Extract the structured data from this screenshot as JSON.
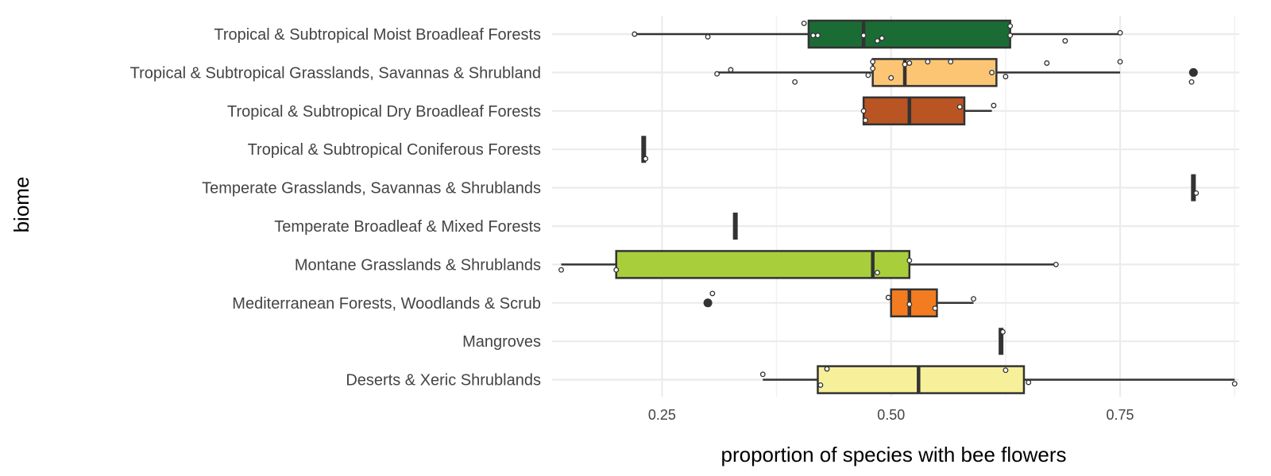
{
  "chart_data": {
    "type": "boxplot",
    "orientation": "horizontal",
    "xlabel": "proportion of species with bee flowers",
    "ylabel": "biome",
    "xlim": [
      0.13,
      0.88
    ],
    "x_ticks": [
      0.25,
      0.5,
      0.75
    ],
    "x_tick_labels": [
      "0.25",
      "0.50",
      "0.75"
    ],
    "grid": true,
    "legend": "none",
    "box_outline_color": "#333333",
    "categories": [
      "Tropical & Subtropical Moist Broadleaf Forests",
      "Tropical & Subtropical Grasslands, Savannas & Shrubland",
      "Tropical & Subtropical Dry Broadleaf Forests",
      "Tropical & Subtropical Coniferous Forests",
      "Temperate Grasslands, Savannas & Shrublands",
      "Temperate Broadleaf & Mixed Forests",
      "Montane Grasslands & Shrublands",
      "Mediterranean Forests, Woodlands & Scrub",
      "Mangroves",
      "Deserts & Xeric Shrublands"
    ],
    "series": [
      {
        "color": "#1b6b35",
        "whisker_low": 0.22,
        "q1": 0.41,
        "median": 0.47,
        "q3": 0.63,
        "whisker_high": 0.75,
        "outliers": [],
        "points": [
          [
            0.405,
            -0.4
          ],
          [
            0.22,
            0.0
          ],
          [
            0.3,
            0.1
          ],
          [
            0.415,
            0.05
          ],
          [
            0.42,
            0.05
          ],
          [
            0.47,
            0.05
          ],
          [
            0.49,
            0.15
          ],
          [
            0.485,
            0.25
          ],
          [
            0.63,
            -0.3
          ],
          [
            0.63,
            0.05
          ],
          [
            0.69,
            0.25
          ],
          [
            0.75,
            -0.05
          ]
        ]
      },
      {
        "color": "#fcc574",
        "whisker_low": 0.31,
        "q1": 0.48,
        "median": 0.515,
        "q3": 0.615,
        "whisker_high": 0.75,
        "outliers": [
          0.83
        ],
        "points": [
          [
            0.325,
            -0.1
          ],
          [
            0.31,
            0.05
          ],
          [
            0.395,
            0.35
          ],
          [
            0.48,
            -0.4
          ],
          [
            0.48,
            -0.15
          ],
          [
            0.475,
            0.1
          ],
          [
            0.5,
            0.2
          ],
          [
            0.515,
            -0.3
          ],
          [
            0.52,
            -0.35
          ],
          [
            0.54,
            -0.4
          ],
          [
            0.565,
            -0.4
          ],
          [
            0.61,
            0.0
          ],
          [
            0.625,
            0.15
          ],
          [
            0.67,
            -0.35
          ],
          [
            0.75,
            -0.4
          ],
          [
            0.828,
            0.35
          ]
        ]
      },
      {
        "color": "#b95423",
        "whisker_low": 0.47,
        "q1": 0.47,
        "median": 0.52,
        "q3": 0.58,
        "whisker_high": 0.61,
        "outliers": [],
        "points": [
          [
            0.47,
            0.0
          ],
          [
            0.472,
            0.35
          ],
          [
            0.575,
            -0.15
          ],
          [
            0.612,
            -0.2
          ]
        ]
      },
      {
        "color": "#d73027",
        "whisker_low": 0.23,
        "q1": 0.23,
        "median": 0.23,
        "q3": 0.23,
        "whisker_high": 0.23,
        "outliers": [],
        "points": [
          [
            0.232,
            0.35
          ]
        ]
      },
      {
        "color": "#a50026",
        "whisker_low": 0.83,
        "q1": 0.83,
        "median": 0.83,
        "q3": 0.83,
        "whisker_high": 0.83,
        "outliers": [],
        "points": [
          [
            0.833,
            0.2
          ]
        ]
      },
      {
        "color": "#e8e84a",
        "whisker_low": 0.33,
        "q1": 0.33,
        "median": 0.33,
        "q3": 0.33,
        "whisker_high": 0.33,
        "outliers": [],
        "points": []
      },
      {
        "color": "#a8cf3b",
        "whisker_low": 0.14,
        "q1": 0.2,
        "median": 0.48,
        "q3": 0.52,
        "whisker_high": 0.68,
        "outliers": [],
        "points": [
          [
            0.14,
            0.2
          ],
          [
            0.2,
            0.2
          ],
          [
            0.485,
            0.3
          ],
          [
            0.52,
            -0.15
          ],
          [
            0.68,
            0.0
          ]
        ]
      },
      {
        "color": "#f47c20",
        "whisker_low": 0.5,
        "q1": 0.5,
        "median": 0.52,
        "q3": 0.55,
        "whisker_high": 0.59,
        "outliers": [
          0.3
        ],
        "points": [
          [
            0.305,
            -0.35
          ],
          [
            0.497,
            -0.2
          ],
          [
            0.52,
            0.05
          ],
          [
            0.548,
            0.2
          ],
          [
            0.59,
            -0.15
          ]
        ]
      },
      {
        "color": "#4a9c4a",
        "whisker_low": 0.62,
        "q1": 0.62,
        "median": 0.62,
        "q3": 0.62,
        "whisker_high": 0.62,
        "outliers": [],
        "points": [
          [
            0.622,
            -0.35
          ]
        ]
      },
      {
        "color": "#f7f09a",
        "whisker_low": 0.36,
        "q1": 0.42,
        "median": 0.53,
        "q3": 0.645,
        "whisker_high": 0.875,
        "outliers": [],
        "points": [
          [
            0.36,
            -0.2
          ],
          [
            0.43,
            -0.4
          ],
          [
            0.423,
            0.2
          ],
          [
            0.625,
            -0.35
          ],
          [
            0.65,
            0.1
          ],
          [
            0.875,
            0.15
          ]
        ]
      }
    ]
  }
}
